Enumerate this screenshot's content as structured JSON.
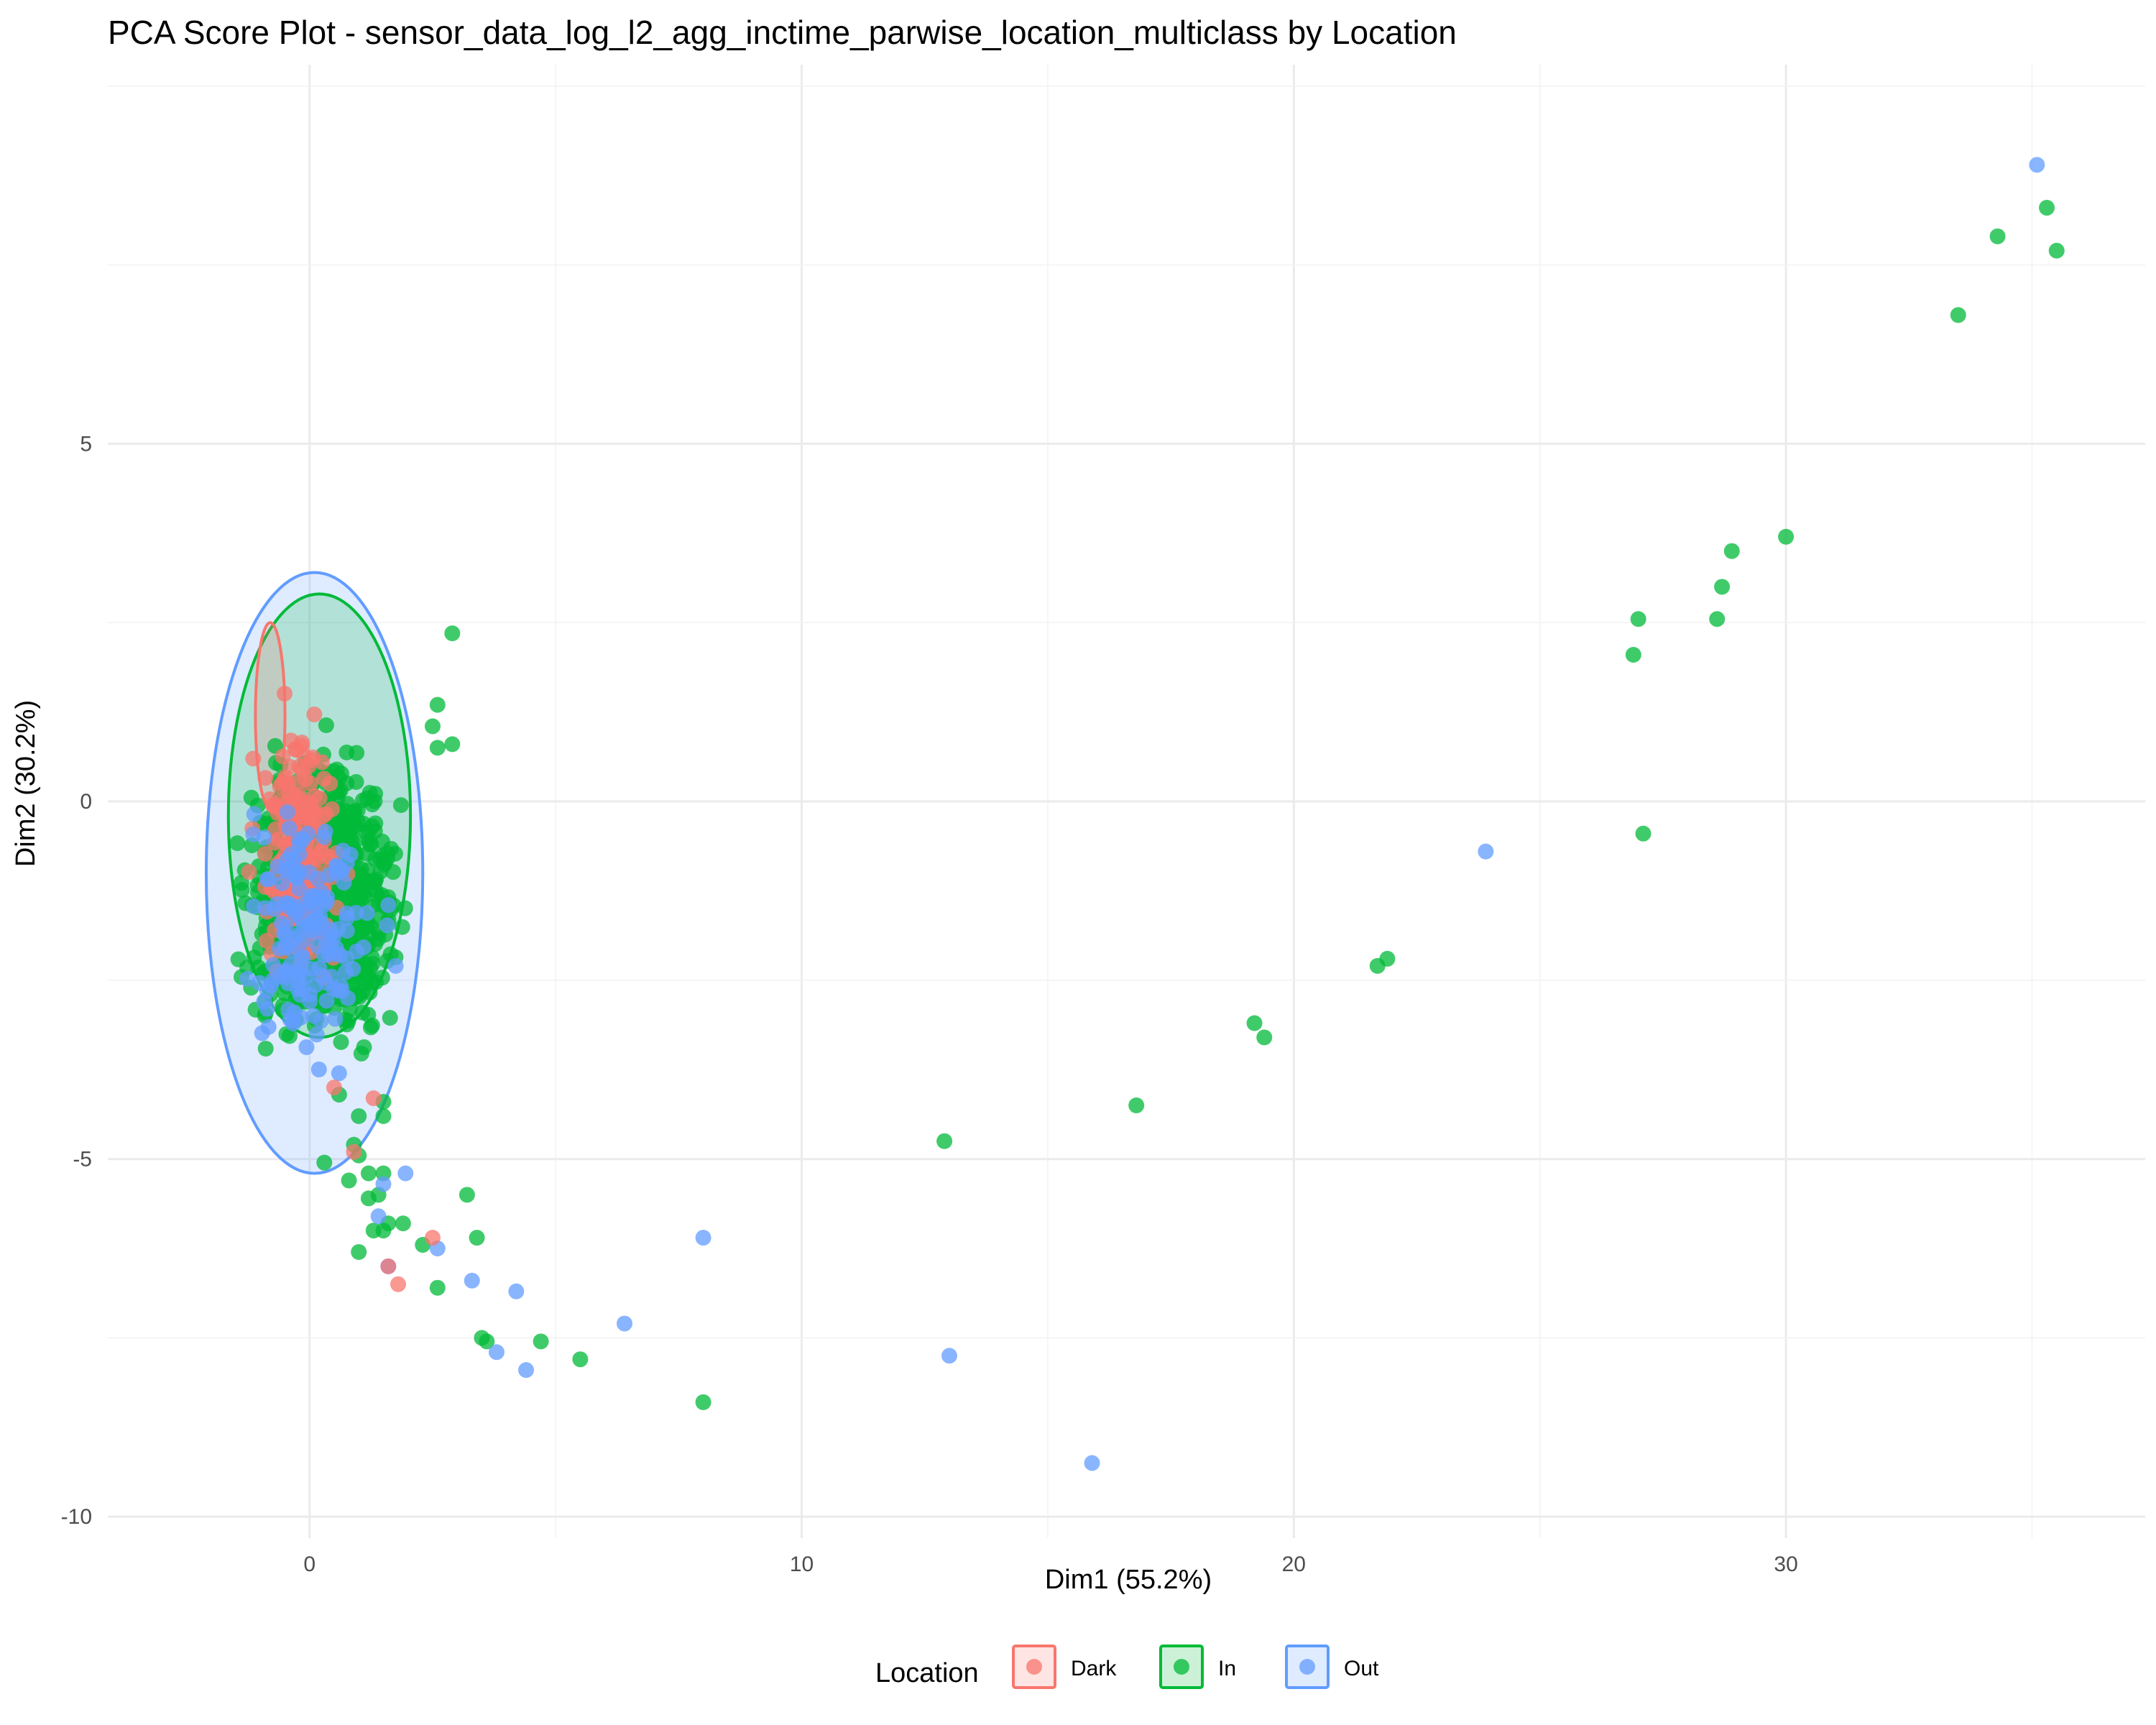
{
  "chart_data": {
    "type": "scatter",
    "title": "PCA Score Plot - sensor_data_log_l2_agg_inctime_parwise_location_multiclass by Location",
    "xlabel": "Dim1 (55.2%)",
    "ylabel": "Dim2 (30.2%)",
    "xlim": [
      -4.1,
      37.3
    ],
    "ylim": [
      -10.3,
      10.3
    ],
    "x_ticks": [
      0,
      10,
      20,
      30
    ],
    "y_ticks": [
      -10,
      -5,
      0,
      5
    ],
    "x_tick_labels": [
      "0",
      "10",
      "20",
      "30"
    ],
    "y_tick_labels": [
      "-10",
      "-5",
      "0",
      "5"
    ],
    "grid": true,
    "legend": {
      "title": "Location",
      "placement": "bottom",
      "entries": [
        "Dark",
        "In",
        "Out"
      ]
    },
    "colors": {
      "Dark": "#F8766D",
      "In": "#00BA38",
      "Out": "#619CFF"
    },
    "ellipses": [
      {
        "name": "Out",
        "cx": 0.1,
        "cy": -1.0,
        "rx": 2.2,
        "ry": 4.2
      },
      {
        "name": "In",
        "cx": 0.2,
        "cy": -0.2,
        "rx": 1.85,
        "ry": 3.1
      },
      {
        "name": "Dark",
        "cx": -0.8,
        "cy": 1.2,
        "rx": 0.3,
        "ry": 1.3
      }
    ],
    "cluster": {
      "note": "dense overlapping cloud of points",
      "regions": [
        {
          "series": "In",
          "x": [
            -2.0,
            2.5
          ],
          "y": [
            -4.2,
            1.5
          ]
        },
        {
          "series": "Dark",
          "x": [
            -1.5,
            1.0
          ],
          "y": [
            -3.5,
            2.0
          ]
        },
        {
          "series": "Out",
          "x": [
            -2.0,
            2.0
          ],
          "y": [
            -4.5,
            1.0
          ]
        }
      ]
    },
    "series": [
      {
        "name": "In",
        "points": [
          [
            35.3,
            8.3
          ],
          [
            34.3,
            7.9
          ],
          [
            35.5,
            7.7
          ],
          [
            33.5,
            6.8
          ],
          [
            30.0,
            3.7
          ],
          [
            28.9,
            3.5
          ],
          [
            28.7,
            3.0
          ],
          [
            27.0,
            2.55
          ],
          [
            28.6,
            2.55
          ],
          [
            26.9,
            2.05
          ],
          [
            27.1,
            -0.45
          ],
          [
            21.9,
            -2.2
          ],
          [
            21.7,
            -2.3
          ],
          [
            19.2,
            -3.1
          ],
          [
            19.4,
            -3.3
          ],
          [
            16.8,
            -4.25
          ],
          [
            12.9,
            -4.75
          ],
          [
            8.0,
            -8.4
          ],
          [
            5.5,
            -7.8
          ],
          [
            4.7,
            -7.55
          ],
          [
            3.6,
            -7.55
          ],
          [
            3.5,
            -7.5
          ],
          [
            2.6,
            -6.8
          ],
          [
            1.0,
            -6.3
          ],
          [
            2.3,
            -6.2
          ],
          [
            1.3,
            -6.0
          ],
          [
            1.5,
            -6.0
          ],
          [
            1.9,
            -5.9
          ],
          [
            1.6,
            -5.9
          ],
          [
            3.2,
            -5.5
          ],
          [
            1.2,
            -5.55
          ],
          [
            1.4,
            -5.5
          ],
          [
            3.4,
            -6.1
          ],
          [
            0.8,
            -5.3
          ],
          [
            1.5,
            -5.2
          ],
          [
            1.2,
            -5.2
          ],
          [
            0.3,
            -5.05
          ],
          [
            1.0,
            -4.95
          ],
          [
            0.9,
            -4.8
          ],
          [
            1.5,
            -4.4
          ],
          [
            1.0,
            -4.4
          ],
          [
            1.5,
            -4.2
          ],
          [
            0.6,
            -4.1
          ],
          [
            2.9,
            2.35
          ],
          [
            2.6,
            1.35
          ],
          [
            2.9,
            0.8
          ],
          [
            2.5,
            1.05
          ],
          [
            2.6,
            0.75
          ]
        ]
      },
      {
        "name": "Out",
        "points": [
          [
            35.1,
            8.9
          ],
          [
            23.9,
            -0.7
          ],
          [
            15.9,
            -9.25
          ],
          [
            13.0,
            -7.75
          ],
          [
            8.0,
            -6.1
          ],
          [
            6.4,
            -7.3
          ],
          [
            4.4,
            -7.95
          ],
          [
            4.2,
            -6.85
          ],
          [
            3.8,
            -7.7
          ],
          [
            3.3,
            -6.7
          ],
          [
            2.6,
            -6.25
          ],
          [
            1.95,
            -5.2
          ],
          [
            1.5,
            -5.35
          ],
          [
            1.4,
            -5.8
          ],
          [
            1.6,
            -6.5
          ],
          [
            1.75,
            -2.3
          ],
          [
            1.6,
            -1.45
          ],
          [
            0.6,
            -3.8
          ]
        ]
      },
      {
        "name": "Dark",
        "points": [
          [
            1.8,
            -6.75
          ],
          [
            1.6,
            -6.5
          ],
          [
            2.5,
            -6.1
          ],
          [
            1.3,
            -4.15
          ],
          [
            0.9,
            -4.9
          ],
          [
            0.5,
            -4.0
          ]
        ]
      }
    ]
  }
}
